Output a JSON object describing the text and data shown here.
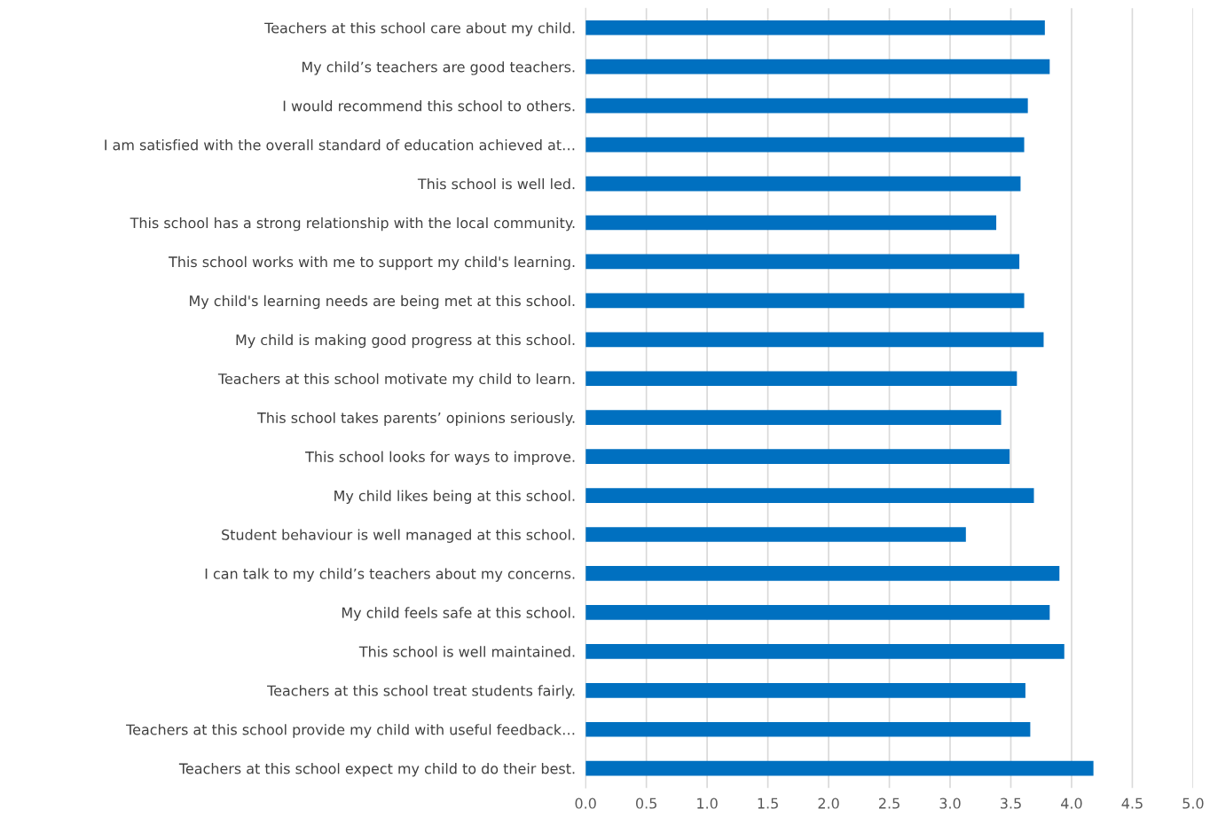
{
  "chart_data": {
    "type": "bar",
    "orientation": "horizontal",
    "categories": [
      "Teachers at this school care about my child.",
      "My child’s teachers are good teachers.",
      "I would recommend this school to others.",
      "I am satisfied with the overall standard of education achieved at…",
      "This school is well led.",
      "This school has a strong relationship with the local community.",
      "This school works with me to support my child's learning.",
      "My child's learning needs are being met at this school.",
      "My child is making good progress at this school.",
      "Teachers at this school motivate my child to learn.",
      "This school takes parents’ opinions seriously.",
      "This school looks for ways to improve.",
      "My child likes being at this school.",
      "Student behaviour is well managed at this school.",
      "I can talk to my child’s teachers about my concerns.",
      "My child feels safe at this school.",
      "This school is well maintained.",
      "Teachers at this school treat students fairly.",
      "Teachers at this school provide my child with useful feedback…",
      "Teachers at this school expect my child to do their best."
    ],
    "values": [
      3.78,
      3.82,
      3.64,
      3.61,
      3.58,
      3.38,
      3.57,
      3.61,
      3.77,
      3.55,
      3.42,
      3.49,
      3.69,
      3.13,
      3.9,
      3.82,
      3.94,
      3.62,
      3.66,
      4.18
    ],
    "color": "#0070c0",
    "xlim": [
      0,
      5
    ],
    "xticks": [
      {
        "value": 0,
        "label": "0.0"
      },
      {
        "value": 0.5,
        "label": "0.5"
      },
      {
        "value": 1,
        "label": "1.0"
      },
      {
        "value": 1.5,
        "label": "1.5"
      },
      {
        "value": 2,
        "label": "2.0"
      },
      {
        "value": 2.5,
        "label": "2.5"
      },
      {
        "value": 3,
        "label": "3.0"
      },
      {
        "value": 3.5,
        "label": "3.5"
      },
      {
        "value": 4,
        "label": "4.0"
      },
      {
        "value": 4.5,
        "label": "4.5"
      },
      {
        "value": 5,
        "label": "5.0"
      }
    ],
    "grid": "x"
  }
}
